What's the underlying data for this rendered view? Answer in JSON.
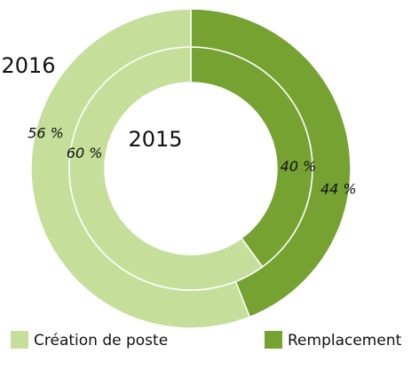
{
  "chart_data": {
    "type": "donut",
    "categories": [
      "Création de poste",
      "Remplacement"
    ],
    "colors": [
      "#c5df9b",
      "#76a232"
    ],
    "rings": [
      {
        "name": "2016",
        "values": [
          56,
          44
        ],
        "value_labels": [
          "56 %",
          "44 %"
        ]
      },
      {
        "name": "2015",
        "values": [
          60,
          40
        ],
        "value_labels": [
          "60 %",
          "40 %"
        ]
      }
    ]
  }
}
